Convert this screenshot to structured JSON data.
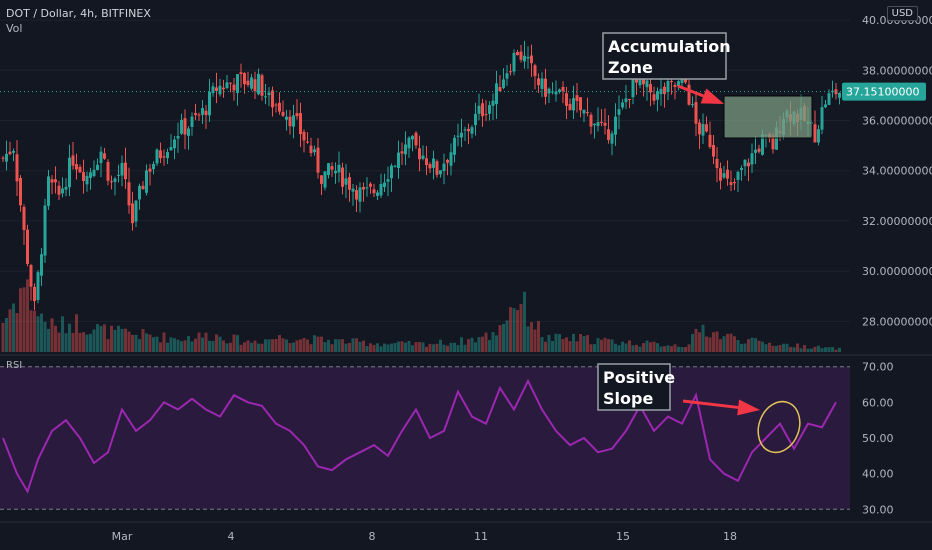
{
  "header": {
    "symbol_line": "DOT / Dollar, 4h, BITFINEX",
    "vol_label": "Vol"
  },
  "currency_label": "USD",
  "current_price_label": "37.15100000",
  "rsi_label": "RSI",
  "colors": {
    "background": "#131722",
    "up": "#26a69a",
    "down": "#ef5350",
    "rsi_line": "#9c27b0",
    "rsi_band": "#2a1a3d",
    "arrow": "#f23645",
    "ellipse": "#e2c35a",
    "box_fill": "#7a9a80"
  },
  "annotations": {
    "accumulation": "Accumulation\nZone",
    "positive_slope": "Positive\nSlope"
  },
  "chart_data": [
    {
      "type": "candlestick",
      "title": "DOT / Dollar, 4h, BITFINEX",
      "y_axis": {
        "ticks": [
          "40.00000000",
          "38.00000000",
          "36.00000000",
          "34.00000000",
          "32.00000000",
          "30.00000000",
          "28.00000000"
        ],
        "ylim": [
          26.7,
          40.6
        ]
      },
      "x_axis": {
        "ticks": [
          "Mar",
          "4",
          "8",
          "11",
          "15",
          "18"
        ]
      },
      "current_price": 37.151,
      "anchor_closes": [
        [
          0,
          34.5
        ],
        [
          3,
          35.0
        ],
        [
          6,
          31.5
        ],
        [
          9,
          28.5
        ],
        [
          13,
          33.5
        ],
        [
          16,
          33.0
        ],
        [
          20,
          34.5
        ],
        [
          24,
          33.8
        ],
        [
          28,
          34.8
        ],
        [
          31,
          33.5
        ],
        [
          34,
          34.0
        ],
        [
          37,
          32.0
        ],
        [
          41,
          34.0
        ],
        [
          45,
          34.7
        ],
        [
          50,
          35.6
        ],
        [
          53,
          35.8
        ],
        [
          57,
          36.3
        ],
        [
          61,
          37.3
        ],
        [
          65,
          37.5
        ],
        [
          69,
          37.6
        ],
        [
          73,
          37.5
        ],
        [
          76,
          36.8
        ],
        [
          80,
          36.5
        ],
        [
          84,
          35.8
        ],
        [
          88,
          34.8
        ],
        [
          91,
          33.8
        ],
        [
          95,
          34.0
        ],
        [
          99,
          33.5
        ],
        [
          103,
          33.0
        ],
        [
          106,
          33.2
        ],
        [
          110,
          34.0
        ],
        [
          114,
          34.8
        ],
        [
          117,
          35.0
        ],
        [
          121,
          34.5
        ],
        [
          124,
          34.0
        ],
        [
          128,
          34.8
        ],
        [
          132,
          35.5
        ],
        [
          136,
          36.3
        ],
        [
          140,
          36.8
        ],
        [
          143,
          37.8
        ],
        [
          147,
          38.8
        ],
        [
          150,
          38.2
        ],
        [
          154,
          37.3
        ],
        [
          158,
          37.0
        ],
        [
          161,
          36.8
        ],
        [
          165,
          36.4
        ],
        [
          169,
          36.0
        ],
        [
          172,
          35.4
        ],
        [
          176,
          36.2
        ],
        [
          180,
          37.5
        ],
        [
          183,
          37.3
        ],
        [
          187,
          37.0
        ],
        [
          191,
          37.3
        ],
        [
          195,
          37.5
        ],
        [
          198,
          35.8
        ],
        [
          202,
          35.2
        ],
        [
          205,
          34.0
        ],
        [
          208,
          33.2
        ],
        [
          211,
          34.0
        ],
        [
          214,
          34.6
        ],
        [
          217,
          35.2
        ],
        [
          220,
          35.0
        ],
        [
          223,
          36.3
        ],
        [
          226,
          36.3
        ],
        [
          229,
          36.0
        ],
        [
          232,
          35.5
        ],
        [
          235,
          36.8
        ],
        [
          238,
          37.15
        ]
      ],
      "volume_profile": [
        [
          0,
          0.45
        ],
        [
          6,
          1.0
        ],
        [
          10,
          0.55
        ],
        [
          15,
          0.35
        ],
        [
          20,
          0.45
        ],
        [
          30,
          0.3
        ],
        [
          40,
          0.25
        ],
        [
          50,
          0.2
        ],
        [
          60,
          0.25
        ],
        [
          70,
          0.15
        ],
        [
          80,
          0.22
        ],
        [
          90,
          0.18
        ],
        [
          100,
          0.15
        ],
        [
          110,
          0.12
        ],
        [
          120,
          0.12
        ],
        [
          130,
          0.15
        ],
        [
          140,
          0.25
        ],
        [
          147,
          0.8
        ],
        [
          155,
          0.2
        ],
        [
          165,
          0.2
        ],
        [
          175,
          0.15
        ],
        [
          185,
          0.12
        ],
        [
          195,
          0.1
        ],
        [
          200,
          0.35
        ],
        [
          205,
          0.25
        ],
        [
          215,
          0.15
        ],
        [
          225,
          0.1
        ],
        [
          238,
          0.05
        ]
      ]
    },
    {
      "type": "line",
      "name": "RSI",
      "y_axis": {
        "ticks": [
          "70.00",
          "60.00",
          "50.00",
          "40.00",
          "30.00"
        ],
        "ylim": [
          27,
          73
        ]
      },
      "bands": [
        70,
        30
      ],
      "x": [
        0,
        4,
        7,
        10,
        14,
        18,
        22,
        26,
        30,
        34,
        38,
        42,
        46,
        50,
        54,
        58,
        62,
        66,
        70,
        74,
        78,
        82,
        86,
        90,
        94,
        98,
        102,
        106,
        110,
        114,
        118,
        122,
        126,
        130,
        134,
        138,
        142,
        146,
        150,
        154,
        158,
        162,
        166,
        170,
        174,
        178,
        182,
        186,
        190,
        194,
        198,
        202,
        206,
        210,
        214,
        218,
        222,
        226,
        230,
        234,
        238
      ],
      "values": [
        50,
        40,
        35,
        44,
        52,
        55,
        50,
        43,
        46,
        58,
        52,
        55,
        60,
        58,
        61,
        58,
        56,
        62,
        60,
        59,
        54,
        52,
        48,
        42,
        41,
        44,
        46,
        48,
        45,
        52,
        58,
        50,
        52,
        63,
        56,
        54,
        64,
        58,
        66,
        58,
        52,
        48,
        50,
        46,
        47,
        52,
        59,
        52,
        56,
        54,
        62,
        44,
        40,
        38,
        46,
        50,
        54,
        47,
        54,
        53,
        60
      ]
    }
  ]
}
